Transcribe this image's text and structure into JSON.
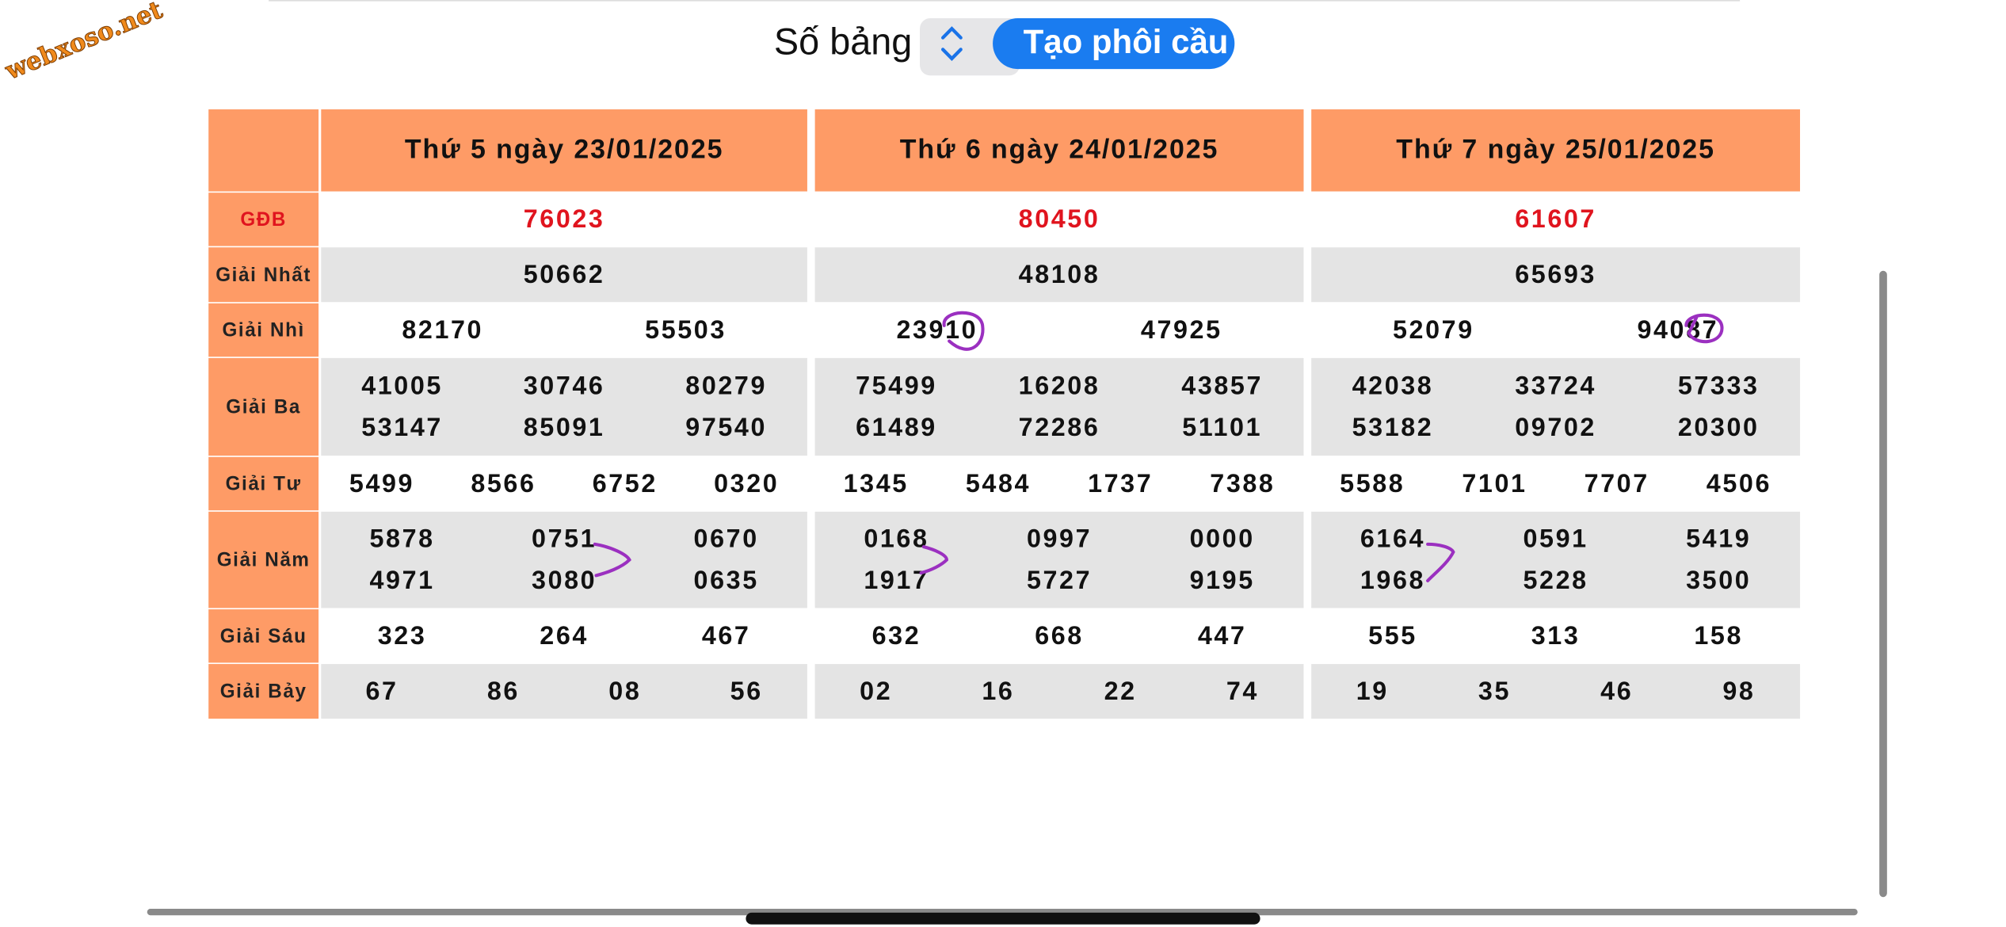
{
  "watermark": "webxoso.net",
  "controls": {
    "label": "Số bảng",
    "button": "Tạo phôi cầu"
  },
  "table": {
    "row_labels": [
      "GĐB",
      "Giải Nhất",
      "Giải Nhì",
      "Giải Ba",
      "Giải Tư",
      "Giải Năm",
      "Giải Sáu",
      "Giải Bảy"
    ],
    "days": [
      {
        "header": "Thứ 5 ngày 23/01/2025",
        "gdb": "76023",
        "nhat": "50662",
        "nhi": [
          "82170",
          "55503"
        ],
        "ba": [
          "41005",
          "30746",
          "80279",
          "53147",
          "85091",
          "97540"
        ],
        "tu": [
          "5499",
          "8566",
          "6752",
          "0320"
        ],
        "nam": [
          "5878",
          "0751",
          "0670",
          "4971",
          "3080",
          "0635"
        ],
        "sau": [
          "323",
          "264",
          "467"
        ],
        "bay": [
          "67",
          "86",
          "08",
          "56"
        ]
      },
      {
        "header": "Thứ 6 ngày 24/01/2025",
        "gdb": "80450",
        "nhat": "48108",
        "nhi": [
          "23910",
          "47925"
        ],
        "ba": [
          "75499",
          "16208",
          "43857",
          "61489",
          "72286",
          "51101"
        ],
        "tu": [
          "1345",
          "5484",
          "1737",
          "7388"
        ],
        "nam": [
          "0168",
          "0997",
          "0000",
          "1917",
          "5727",
          "9195"
        ],
        "sau": [
          "632",
          "668",
          "447"
        ],
        "bay": [
          "02",
          "16",
          "22",
          "74"
        ]
      },
      {
        "header": "Thứ 7 ngày 25/01/2025",
        "gdb": "61607",
        "nhat": "65693",
        "nhi": [
          "52079",
          "94087"
        ],
        "ba": [
          "42038",
          "33724",
          "57333",
          "53182",
          "09702",
          "20300"
        ],
        "tu": [
          "5588",
          "7101",
          "7707",
          "4506"
        ],
        "nam": [
          "6164",
          "0591",
          "5419",
          "1968",
          "5228",
          "3500"
        ],
        "sau": [
          "555",
          "313",
          "158"
        ],
        "bay": [
          "19",
          "35",
          "46",
          "98"
        ]
      }
    ]
  }
}
